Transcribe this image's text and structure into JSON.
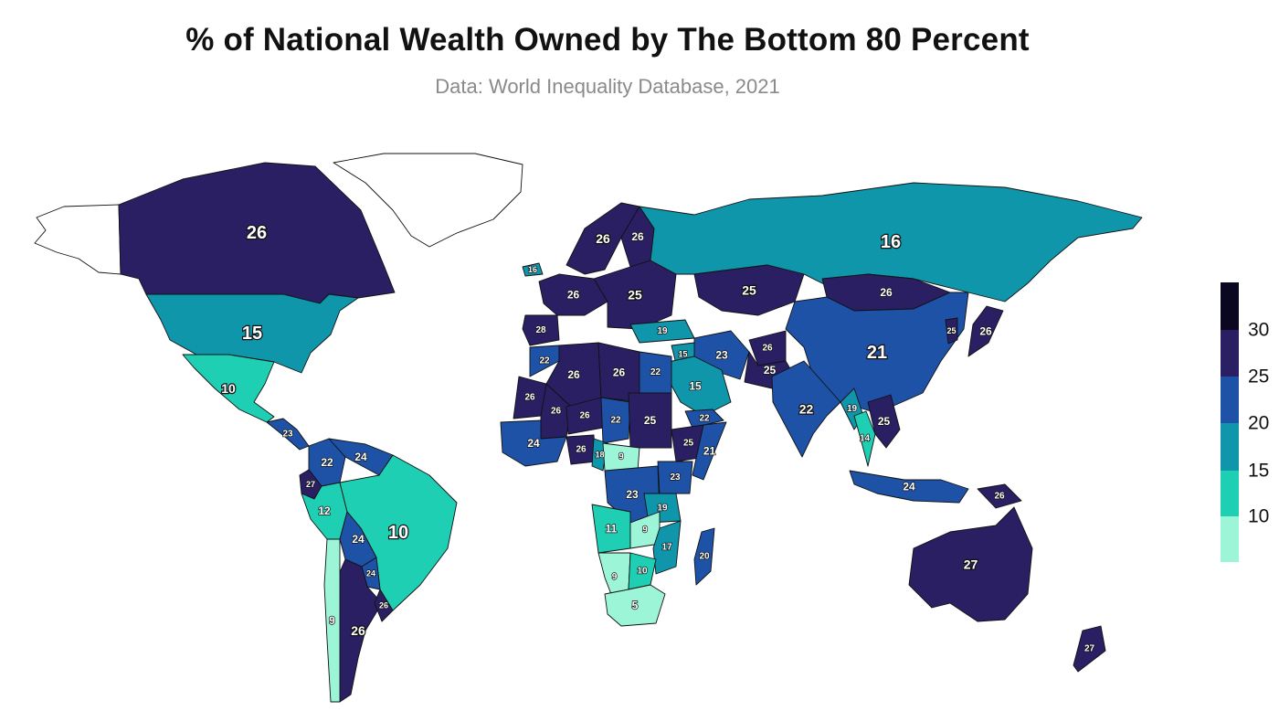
{
  "title": "% of National Wealth Owned by The Bottom 80 Percent",
  "subtitle": "Data: World Inequality Database, 2021",
  "legend": {
    "ticks": [
      "10",
      "15",
      "20",
      "25",
      "30"
    ],
    "colors": [
      "#9df5d8",
      "#1ecfb4",
      "#0f96ab",
      "#1d52a6",
      "#2a1f62",
      "#0a0820"
    ]
  },
  "regions": [
    {
      "id": "alaska",
      "value": null
    },
    {
      "id": "canada",
      "value": 26
    },
    {
      "id": "greenland",
      "value": null
    },
    {
      "id": "usa",
      "value": 15
    },
    {
      "id": "mexico",
      "value": 10
    },
    {
      "id": "central-america",
      "value": 23
    },
    {
      "id": "colombia",
      "value": 22
    },
    {
      "id": "venezuela",
      "value": 24
    },
    {
      "id": "ecuador",
      "value": 27
    },
    {
      "id": "peru",
      "value": 12
    },
    {
      "id": "brazil",
      "value": 10
    },
    {
      "id": "bolivia",
      "value": 24
    },
    {
      "id": "paraguay",
      "value": 24
    },
    {
      "id": "argentina",
      "value": 26
    },
    {
      "id": "uruguay",
      "value": 26
    },
    {
      "id": "chile",
      "value": 9
    },
    {
      "id": "iceland",
      "value": 16
    },
    {
      "id": "scandinavia",
      "value": 26
    },
    {
      "id": "finland",
      "value": 26
    },
    {
      "id": "western-europe",
      "value": 26
    },
    {
      "id": "iberia",
      "value": 28
    },
    {
      "id": "eastern-europe",
      "value": 25
    },
    {
      "id": "turkey",
      "value": 19
    },
    {
      "id": "russia",
      "value": 16
    },
    {
      "id": "kazakhstan",
      "value": 25
    },
    {
      "id": "mongolia",
      "value": 26
    },
    {
      "id": "china",
      "value": 21
    },
    {
      "id": "japan",
      "value": 26
    },
    {
      "id": "korea",
      "value": 25
    },
    {
      "id": "iran",
      "value": 23
    },
    {
      "id": "afghanistan",
      "value": 26
    },
    {
      "id": "pakistan",
      "value": 25
    },
    {
      "id": "india",
      "value": 22
    },
    {
      "id": "myanmar",
      "value": 19
    },
    {
      "id": "thailand",
      "value": 14
    },
    {
      "id": "vietnam",
      "value": 25
    },
    {
      "id": "saudi-arabia",
      "value": 15
    },
    {
      "id": "yemen",
      "value": 22
    },
    {
      "id": "iraq",
      "value": 15
    },
    {
      "id": "indonesia",
      "value": 24
    },
    {
      "id": "papua-new-guinea",
      "value": 26
    },
    {
      "id": "australia",
      "value": 27
    },
    {
      "id": "new-zealand",
      "value": 27
    },
    {
      "id": "morocco",
      "value": 22
    },
    {
      "id": "algeria",
      "value": 26
    },
    {
      "id": "libya",
      "value": 26
    },
    {
      "id": "egypt",
      "value": 22
    },
    {
      "id": "mauritania",
      "value": 26
    },
    {
      "id": "mali",
      "value": 26
    },
    {
      "id": "niger",
      "value": 26
    },
    {
      "id": "chad",
      "value": 22
    },
    {
      "id": "sudan",
      "value": 25
    },
    {
      "id": "ethiopia",
      "value": 25
    },
    {
      "id": "west-africa",
      "value": 24
    },
    {
      "id": "nigeria",
      "value": 26
    },
    {
      "id": "cameroon",
      "value": 18
    },
    {
      "id": "car",
      "value": 9
    },
    {
      "id": "somalia",
      "value": 21
    },
    {
      "id": "kenya",
      "value": 23
    },
    {
      "id": "drc",
      "value": 23
    },
    {
      "id": "tanzania",
      "value": 19
    },
    {
      "id": "angola",
      "value": 11
    },
    {
      "id": "zambia",
      "value": 9
    },
    {
      "id": "mozambique",
      "value": 17
    },
    {
      "id": "namibia",
      "value": 9
    },
    {
      "id": "botswana",
      "value": 10
    },
    {
      "id": "south-africa",
      "value": 5
    },
    {
      "id": "madagascar",
      "value": 20
    }
  ]
}
